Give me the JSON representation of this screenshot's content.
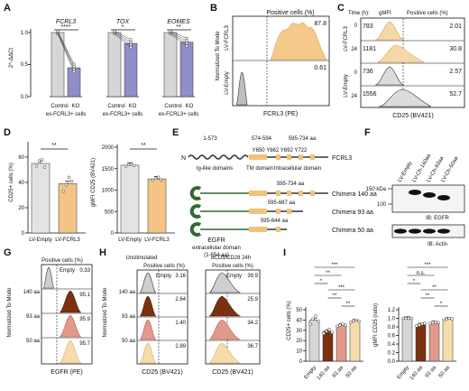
{
  "panels": {
    "A": {
      "label": "A",
      "ylabel": "2^-ΔΔCt",
      "yticks": [
        "0.0",
        "0.5",
        "1.0"
      ],
      "group_label": "ex-FCRL3+ cells",
      "cond_labels": [
        "Control",
        "KO"
      ],
      "genes": [
        {
          "name": "FCRL3",
          "sig": "****"
        },
        {
          "name": "TOX",
          "sig": "*"
        },
        {
          "name": "EOMES",
          "sig": "**"
        }
      ]
    },
    "B": {
      "label": "B",
      "header": "Positive cells (%)",
      "ylabel": "Normalized To Mode",
      "xlabel": "FCRL3 (PE)",
      "rows": [
        {
          "name": "LV-FCRL3",
          "value": "87.8"
        },
        {
          "name": "LV-Empty",
          "value": "0.61"
        }
      ]
    },
    "C": {
      "label": "C",
      "col_time": "Time (h):",
      "col_gmfi": "gMFI",
      "col_pos": "Positive cells (%)",
      "xlabel": "CD25 (BV421)",
      "groups": [
        "LV-FCRL3",
        "LV-Empty"
      ],
      "rows": [
        {
          "time": "0",
          "gmfi": "783",
          "pos": "2.01"
        },
        {
          "time": "24",
          "gmfi": "1181",
          "pos": "30.8"
        },
        {
          "time": "0",
          "gmfi": "736",
          "pos": "2.57"
        },
        {
          "time": "24",
          "gmfi": "1556",
          "pos": "52.7"
        }
      ]
    },
    "D": {
      "label": "D",
      "sig": "**",
      "groups": [
        "LV-Empty",
        "LV-FCRL3"
      ],
      "left": {
        "ylabel": "CD25+ cells (%)",
        "yticks": [
          "0",
          "20",
          "40",
          "60"
        ]
      },
      "right": {
        "ylabel": "gMFI CD25 (BV421)",
        "yticks": [
          "0",
          "500",
          "1000",
          "1500",
          "2000"
        ]
      }
    },
    "E": {
      "label": "E",
      "top_ranges": [
        "1-573",
        "574-594",
        "595-734 aa"
      ],
      "residues": "Y650 Y662 Y692 Y722",
      "domains": [
        "Ig-like domains",
        "TM domain",
        "Intracellular domain"
      ],
      "n_label": "N",
      "protein": "FCRL3",
      "chimeras": [
        {
          "range": "595-734 aa",
          "name": "Chimera 140 aa"
        },
        {
          "range": "595-687 aa",
          "name": "Chimera 93 aa"
        },
        {
          "range": "595-644 aa",
          "name": "Chimera 50 aa"
        }
      ],
      "egfr_label": "EGFR",
      "egfr_sub": "extracellular domain",
      "egfr_range": "(1-654 aa)"
    },
    "F": {
      "label": "F",
      "lanes": [
        "LV-Empty",
        "LV-Ch-140aa",
        "LV-Ch-93aa",
        "LV-Ch-50aa"
      ],
      "markers": [
        "150 kDa",
        "100"
      ],
      "ib1": "IB: EGFR",
      "ib2": "IB: Actin"
    },
    "G": {
      "label": "G",
      "header": "Positive cells (%)",
      "ylabel": "Normalized To Mode",
      "xlabel": "EGFR (PE)",
      "rows": [
        {
          "name": "",
          "tag": "Empty",
          "value": "0.33"
        },
        {
          "name": "140 aa",
          "tag": "",
          "value": "95.1"
        },
        {
          "name": "93 aa",
          "tag": "",
          "value": "95.9"
        },
        {
          "name": "50 aa",
          "tag": "",
          "value": "95.7"
        }
      ]
    },
    "H": {
      "label": "H",
      "cond1": "Unstimulated",
      "cond2": "αCD3/CD28 24h",
      "header": "Positive cells (%)",
      "ylabel": "Normalized To Mode",
      "xlabel": "CD25 (BV421)",
      "row_names": [
        "",
        "140 aa",
        "93 aa",
        "50 aa"
      ],
      "unstim": [
        {
          "tag": "Empty",
          "value": "3.16"
        },
        {
          "tag": "",
          "value": "2.64"
        },
        {
          "tag": "",
          "value": "1.40"
        },
        {
          "tag": "",
          "value": "2.89"
        }
      ],
      "stim": [
        {
          "tag": "Empty",
          "value": "39.9"
        },
        {
          "tag": "",
          "value": "25.9"
        },
        {
          "tag": "",
          "value": "34.2"
        },
        {
          "tag": "",
          "value": "36.7"
        }
      ]
    },
    "I": {
      "label": "I",
      "categories": [
        "Empty",
        "140 aa",
        "93 aa",
        "50 aa"
      ],
      "left": {
        "ylabel": "CD25+ cells (%)",
        "yticks": [
          "0",
          "10",
          "20",
          "30",
          "40",
          "50"
        ],
        "brackets": [
          "***",
          "**",
          "*",
          "***",
          "**",
          "**"
        ]
      },
      "right": {
        "ylabel": "gMFI CD25 (ratio)",
        "yticks": [
          "0.0",
          "0.2",
          "0.4",
          "0.6",
          "0.8",
          "1.0",
          "1.2"
        ],
        "brackets": [
          "***",
          "n.s.",
          "*",
          "**",
          "**",
          "*"
        ]
      }
    }
  },
  "chart_data": [
    {
      "type": "bar",
      "panel": "A",
      "ylabel": "2^-ΔΔCt",
      "ylim": [
        0,
        1.2
      ],
      "categories": [
        "FCRL3",
        "TOX",
        "EOMES"
      ],
      "series": [
        {
          "name": "Control",
          "values": [
            1.0,
            1.0,
            1.0
          ]
        },
        {
          "name": "KO",
          "values": [
            0.45,
            0.83,
            0.85
          ]
        }
      ],
      "colors": [
        "#d6d6d6",
        "#8f8ec7"
      ]
    },
    {
      "type": "bar",
      "panel": "D-left",
      "ylabel": "CD25+ cells (%)",
      "ylim": [
        0,
        70
      ],
      "categories": [
        "LV-Empty",
        "LV-FCRL3"
      ],
      "values": [
        55,
        39
      ],
      "points": [
        [
          53,
          57,
          58,
          52
        ],
        [
          33,
          38,
          44,
          41
        ]
      ]
    },
    {
      "type": "bar",
      "panel": "D-right",
      "ylabel": "gMFI CD25 (BV421)",
      "ylim": [
        0,
        2000
      ],
      "categories": [
        "LV-Empty",
        "LV-FCRL3"
      ],
      "values": [
        1580,
        1260
      ],
      "points": [
        [
          1560,
          1590,
          1600,
          1570
        ],
        [
          1230,
          1280,
          1300,
          1240
        ]
      ]
    },
    {
      "type": "bar",
      "panel": "I-left",
      "ylabel": "CD25+ cells (%)",
      "ylim": [
        0,
        50
      ],
      "categories": [
        "Empty",
        "140 aa",
        "93 aa",
        "50 aa"
      ],
      "values": [
        40,
        29,
        35,
        39
      ],
      "points": [
        [
          36,
          41,
          44,
          39
        ],
        [
          27,
          29,
          31,
          28
        ],
        [
          34,
          35,
          36,
          35
        ],
        [
          38,
          39,
          40,
          39
        ]
      ],
      "colors": [
        "#d6d6d6",
        "#7b3010",
        "#e0998a",
        "#f6dcab"
      ]
    },
    {
      "type": "bar",
      "panel": "I-right",
      "ylabel": "gMFI CD25 (ratio)",
      "ylim": [
        0,
        1.2
      ],
      "categories": [
        "Empty",
        "140 aa",
        "93 aa",
        "50 aa"
      ],
      "values": [
        1.0,
        0.85,
        0.9,
        0.98
      ],
      "points": [
        [
          1.0,
          1.0,
          1.0,
          1.0
        ],
        [
          0.82,
          0.84,
          0.87,
          0.88
        ],
        [
          0.88,
          0.9,
          0.91,
          0.9
        ],
        [
          0.96,
          0.98,
          1.0,
          0.99
        ]
      ],
      "colors": [
        "#d6d6d6",
        "#7b3010",
        "#e0998a",
        "#f6dcab"
      ]
    }
  ]
}
